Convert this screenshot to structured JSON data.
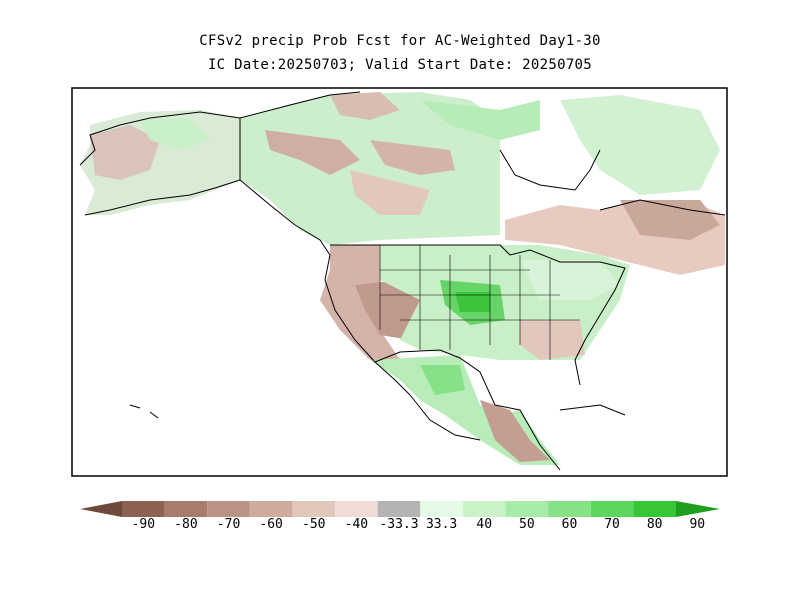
{
  "title": {
    "line1": "CFSv2 precip Prob Fcst for AC-Weighted Day1-30",
    "line2": "IC Date:20250703; Valid Start Date: 20250705"
  },
  "colorbar": {
    "labels": [
      "-90",
      "-80",
      "-70",
      "-60",
      "-50",
      "-40",
      "-33.3",
      "33.3",
      "40",
      "50",
      "60",
      "70",
      "80",
      "90"
    ],
    "colors": [
      "#6e4a3c",
      "#8e6252",
      "#a87b6c",
      "#bb9286",
      "#cfaa9f",
      "#e2c7bd",
      "#efdcd5",
      "#b4b4b4",
      "#e6fbe6",
      "#c8f4c8",
      "#a6eca6",
      "#86e286",
      "#5ed65e",
      "#36c636",
      "#1ea01e"
    ]
  }
}
